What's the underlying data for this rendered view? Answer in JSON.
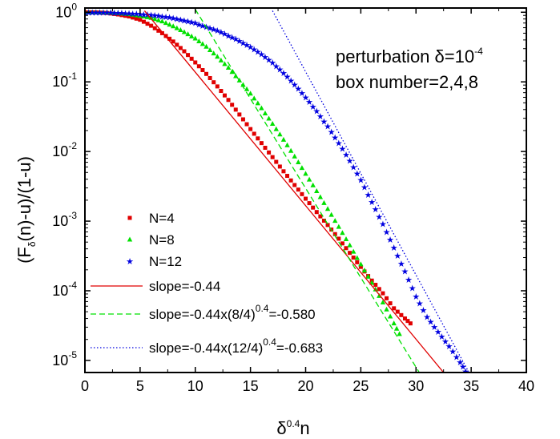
{
  "chart_data": {
    "type": "scatter",
    "xlabel": {
      "base": "δ",
      "sup": "0.4",
      "tail": "n"
    },
    "ylabel": {
      "pre": "(F",
      "sub": "δ",
      "post": "(n)-u)/(1-u)"
    },
    "xlim": [
      0,
      40
    ],
    "ylim": [
      6.7e-06,
      1.15
    ],
    "yscale": "log",
    "x_ticks": [
      0,
      5,
      10,
      15,
      20,
      25,
      30,
      35,
      40
    ],
    "y_ticks": [
      {
        "value": 1,
        "base": "10",
        "exp": "0"
      },
      {
        "value": 0.1,
        "base": "10",
        "exp": "-1"
      },
      {
        "value": 0.01,
        "base": "10",
        "exp": "-2"
      },
      {
        "value": 0.001,
        "base": "10",
        "exp": "-3"
      },
      {
        "value": 0.0001,
        "base": "10",
        "exp": "-4"
      },
      {
        "value": 1e-05,
        "base": "10",
        "exp": "-5"
      }
    ],
    "annotations": [
      {
        "pre": "perturbation δ=10",
        "sup": "-4"
      },
      {
        "pre": "box number=2,4,8",
        "sup": ""
      }
    ],
    "series": [
      {
        "name": "N=4",
        "kind": "points",
        "marker": "square",
        "color": "#e00000",
        "points": [
          [
            0,
            1.0
          ],
          [
            1,
            0.995
          ],
          [
            2,
            0.975
          ],
          [
            3,
            0.93
          ],
          [
            4,
            0.87
          ],
          [
            5,
            0.78
          ],
          [
            6,
            0.64
          ],
          [
            7,
            0.5
          ],
          [
            8,
            0.38
          ],
          [
            9,
            0.275
          ],
          [
            10,
            0.19
          ],
          [
            11,
            0.13
          ],
          [
            12,
            0.086
          ],
          [
            13,
            0.055
          ],
          [
            14,
            0.034
          ],
          [
            15,
            0.021
          ],
          [
            16,
            0.0132
          ],
          [
            17,
            0.0083
          ],
          [
            18,
            0.0052
          ],
          [
            19,
            0.0033
          ],
          [
            20,
            0.0021
          ],
          [
            21,
            0.00135
          ],
          [
            22,
            0.00088
          ],
          [
            23,
            0.00056
          ],
          [
            24,
            0.00035
          ],
          [
            25,
            0.00022
          ],
          [
            26,
            0.00014
          ],
          [
            27,
            9.2e-05
          ],
          [
            28,
            5.6e-05
          ],
          [
            29,
            4e-05
          ],
          [
            29.5,
            3.4e-05
          ]
        ]
      },
      {
        "name": "N=8",
        "kind": "points",
        "marker": "triangle",
        "color": "#00e000",
        "points": [
          [
            0,
            1.0
          ],
          [
            1,
            0.998
          ],
          [
            2,
            0.99
          ],
          [
            3,
            0.97
          ],
          [
            4,
            0.94
          ],
          [
            5,
            0.89
          ],
          [
            6,
            0.83
          ],
          [
            7,
            0.74
          ],
          [
            8,
            0.63
          ],
          [
            9,
            0.52
          ],
          [
            10,
            0.42
          ],
          [
            11,
            0.32
          ],
          [
            12,
            0.23
          ],
          [
            13,
            0.16
          ],
          [
            14,
            0.105
          ],
          [
            15,
            0.068
          ],
          [
            16,
            0.042
          ],
          [
            17,
            0.025
          ],
          [
            18,
            0.0148
          ],
          [
            19,
            0.0085
          ],
          [
            20,
            0.0048
          ],
          [
            21,
            0.0027
          ],
          [
            22,
            0.0015
          ],
          [
            23,
            0.00083
          ],
          [
            24,
            0.00045
          ],
          [
            25,
            0.00024
          ],
          [
            26,
            0.00013
          ],
          [
            27,
            6.8e-05
          ],
          [
            28,
            3.4e-05
          ],
          [
            28.5,
            2.4e-05
          ]
        ]
      },
      {
        "name": "N=12",
        "kind": "points",
        "marker": "star",
        "color": "#0000e0",
        "points": [
          [
            0,
            1.0
          ],
          [
            2,
            0.995
          ],
          [
            4,
            0.97
          ],
          [
            6,
            0.92
          ],
          [
            8,
            0.83
          ],
          [
            10,
            0.7
          ],
          [
            12,
            0.55
          ],
          [
            14,
            0.39
          ],
          [
            15,
            0.32
          ],
          [
            16,
            0.25
          ],
          [
            17,
            0.19
          ],
          [
            18,
            0.135
          ],
          [
            19,
            0.092
          ],
          [
            20,
            0.06
          ],
          [
            21,
            0.038
          ],
          [
            22,
            0.023
          ],
          [
            23,
            0.0133
          ],
          [
            24,
            0.0074
          ],
          [
            25,
            0.0039
          ],
          [
            26,
            0.0019
          ],
          [
            27,
            0.00091
          ],
          [
            28,
            0.00042
          ],
          [
            29,
            0.00019
          ],
          [
            30,
            8.3e-05
          ],
          [
            31,
            4.2e-05
          ],
          [
            32,
            2.6e-05
          ],
          [
            33,
            1.6e-05
          ],
          [
            34,
            9.5e-06
          ],
          [
            34.5,
            7e-06
          ]
        ]
      },
      {
        "name": "slope=-0.44",
        "kind": "line",
        "style": "solid",
        "color": "#e00000",
        "points": [
          [
            5.4,
            1.05
          ],
          [
            32.5,
            6.7e-06
          ]
        ]
      },
      {
        "name": "slope=-0.44x(8/4)",
        "name_sup": "0.4",
        "name_post": "=-0.580",
        "kind": "line",
        "style": "dashed",
        "color": "#00e000",
        "points": [
          [
            10,
            1.1
          ],
          [
            30.3,
            6.7e-06
          ]
        ]
      },
      {
        "name": "slope=-0.44x(12/4)",
        "name_sup": "0.4",
        "name_post": "=-0.683",
        "kind": "line",
        "style": "dotted",
        "color": "#0000e0",
        "points": [
          [
            17,
            1.05
          ],
          [
            34.8,
            6.7e-06
          ]
        ]
      }
    ]
  }
}
